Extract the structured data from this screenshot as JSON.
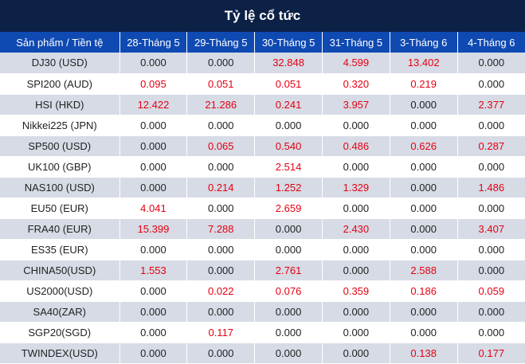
{
  "title": "Tỷ lệ cổ tức",
  "colors": {
    "title_bg": "#0d2147",
    "header_bg": "#0f4ab3",
    "row_alt": "#d6dbe5",
    "positive": "#e60012"
  },
  "columns": [
    "Sản phẩm / Tiền tệ",
    "28-Tháng 5",
    "29-Tháng 5",
    "30-Tháng 5",
    "31-Tháng 5",
    "3-Tháng 6",
    "4-Tháng 6"
  ],
  "rows": [
    {
      "product": "DJ30 (USD)",
      "values": [
        "0.000",
        "0.000",
        "32.848",
        "4.599",
        "13.402",
        "0.000"
      ]
    },
    {
      "product": "SPI200 (AUD)",
      "values": [
        "0.095",
        "0.051",
        "0.051",
        "0.320",
        "0.219",
        "0.000"
      ]
    },
    {
      "product": "HSI (HKD)",
      "values": [
        "12.422",
        "21.286",
        "0.241",
        "3.957",
        "0.000",
        "2.377"
      ]
    },
    {
      "product": "Nikkei225 (JPN)",
      "values": [
        "0.000",
        "0.000",
        "0.000",
        "0.000",
        "0.000",
        "0.000"
      ]
    },
    {
      "product": "SP500 (USD)",
      "values": [
        "0.000",
        "0.065",
        "0.540",
        "0.486",
        "0.626",
        "0.287"
      ]
    },
    {
      "product": "UK100 (GBP)",
      "values": [
        "0.000",
        "0.000",
        "2.514",
        "0.000",
        "0.000",
        "0.000"
      ]
    },
    {
      "product": "NAS100 (USD)",
      "values": [
        "0.000",
        "0.214",
        "1.252",
        "1.329",
        "0.000",
        "1.486"
      ]
    },
    {
      "product": "EU50 (EUR)",
      "values": [
        "4.041",
        "0.000",
        "2.659",
        "0.000",
        "0.000",
        "0.000"
      ]
    },
    {
      "product": "FRA40 (EUR)",
      "values": [
        "15.399",
        "7.288",
        "0.000",
        "2.430",
        "0.000",
        "3.407"
      ]
    },
    {
      "product": "ES35 (EUR)",
      "values": [
        "0.000",
        "0.000",
        "0.000",
        "0.000",
        "0.000",
        "0.000"
      ]
    },
    {
      "product": "CHINA50(USD)",
      "values": [
        "1.553",
        "0.000",
        "2.761",
        "0.000",
        "2.588",
        "0.000"
      ]
    },
    {
      "product": "US2000(USD)",
      "values": [
        "0.000",
        "0.022",
        "0.076",
        "0.359",
        "0.186",
        "0.059"
      ]
    },
    {
      "product": "SA40(ZAR)",
      "values": [
        "0.000",
        "0.000",
        "0.000",
        "0.000",
        "0.000",
        "0.000"
      ]
    },
    {
      "product": "SGP20(SGD)",
      "values": [
        "0.000",
        "0.117",
        "0.000",
        "0.000",
        "0.000",
        "0.000"
      ]
    },
    {
      "product": "TWINDEX(USD)",
      "values": [
        "0.000",
        "0.000",
        "0.000",
        "0.000",
        "0.138",
        "0.177"
      ]
    }
  ]
}
